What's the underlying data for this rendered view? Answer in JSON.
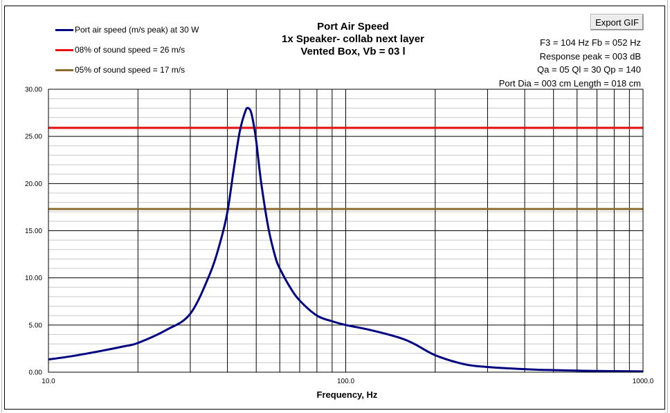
{
  "export_button": {
    "label": "Export GIF"
  },
  "title_lines": [
    "Port Air Speed",
    "1x Speaker- collab next layer",
    "Vented Box, Vb = 03 l"
  ],
  "info_lines": [
    "F3 = 104 Hz  Fb = 052 Hz",
    "Response peak = 003 dB",
    "Qa = 05  Ql = 30  Qp = 140",
    "Port Dia = 003 cm  Length = 018 cm"
  ],
  "colors": {
    "curve": "#000080",
    "limit_high": "#e81010",
    "limit_low": "#8b6a2e",
    "grid": "#000000",
    "minor_grid": "#c8c8c8"
  },
  "chart_data": {
    "type": "line",
    "title": "Port Air Speed",
    "xlabel": "Frequency, Hz",
    "ylabel": "",
    "xscale": "log",
    "xlim": [
      10,
      1000
    ],
    "ylim": [
      0,
      30
    ],
    "x_tick_labels": [
      "10.0",
      "100.0",
      "1000.0"
    ],
    "y_tick_labels": [
      "0.00",
      "5.00",
      "10.00",
      "15.00",
      "20.00",
      "25.00",
      "30.00"
    ],
    "y_ticks": [
      0,
      5,
      10,
      15,
      20,
      25,
      30
    ],
    "legend_position": "top-left",
    "series": [
      {
        "name": "Port air speed (m/s peak) at 30 W",
        "color": "#000080",
        "x": [
          10,
          12,
          15,
          18,
          20,
          25,
          30,
          35,
          38,
          40,
          42,
          44,
          46,
          47,
          48,
          49,
          50,
          52,
          55,
          58,
          60,
          65,
          70,
          80,
          90,
          100,
          120,
          150,
          170,
          200,
          250,
          300,
          400,
          500,
          700,
          1000
        ],
        "y": [
          1.35,
          1.7,
          2.25,
          2.75,
          3.1,
          4.5,
          6.2,
          10.5,
          14.0,
          17.0,
          21.5,
          25.5,
          27.7,
          28.0,
          27.6,
          26.3,
          24.5,
          20.0,
          15.2,
          12.2,
          11.0,
          9.0,
          7.6,
          6.0,
          5.4,
          5.0,
          4.5,
          3.7,
          3.0,
          1.8,
          0.85,
          0.55,
          0.32,
          0.22,
          0.13,
          0.08
        ]
      },
      {
        "name": "08% of sound speed = 26 m/s",
        "color": "#e81010",
        "x": [
          10,
          1000
        ],
        "y": [
          25.9,
          25.9
        ]
      },
      {
        "name": "05% of sound speed = 17 m/s",
        "color": "#8b6a2e",
        "x": [
          10,
          1000
        ],
        "y": [
          17.3,
          17.3
        ]
      }
    ]
  }
}
